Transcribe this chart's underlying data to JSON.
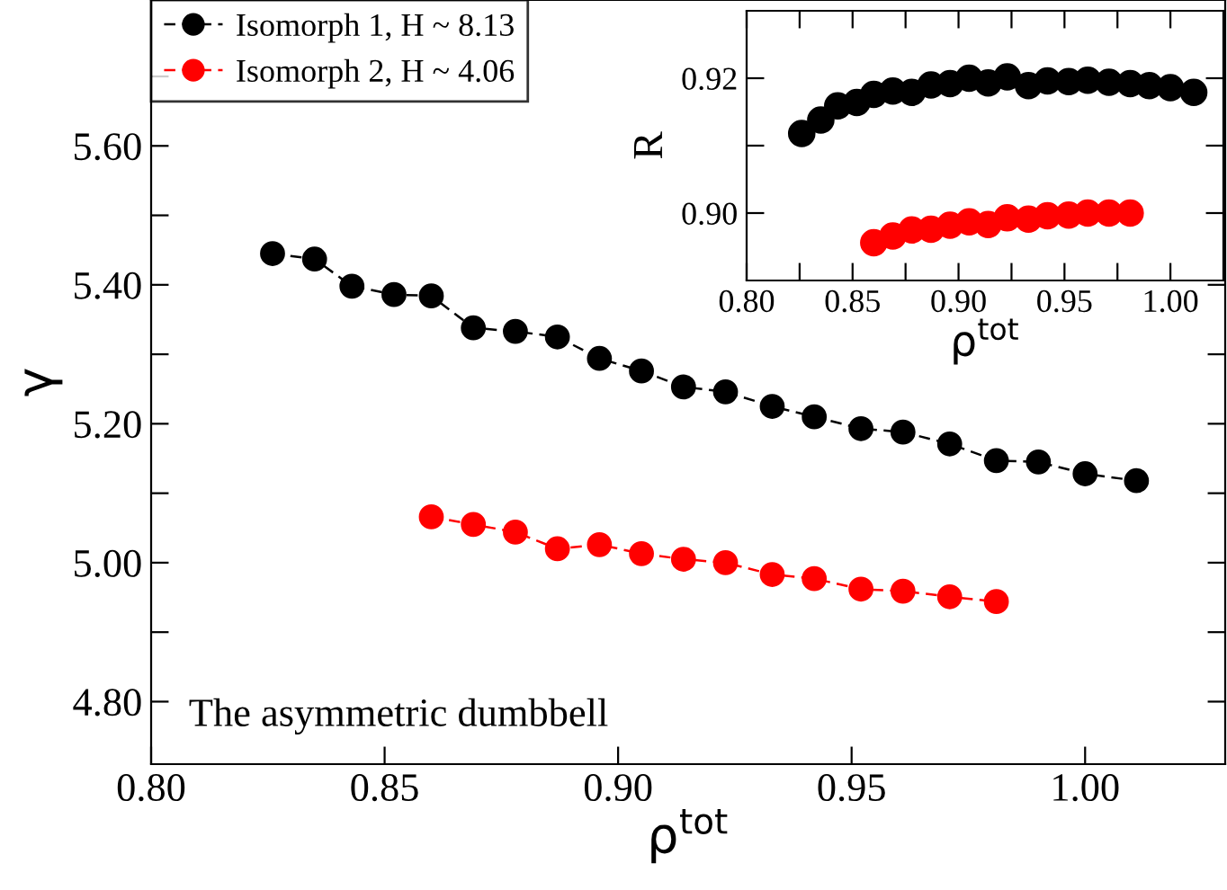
{
  "chart_data": [
    {
      "type": "line",
      "xlabel": "ρ$^{tot}$",
      "ylabel": "γ",
      "xlim": [
        0.8,
        1.03
      ],
      "ylim": [
        4.71,
        5.81
      ],
      "xticks": [
        {
          "value": 0.8,
          "label": "0.80"
        },
        {
          "value": 0.85,
          "label": "0.85"
        },
        {
          "value": 0.9,
          "label": "0.90"
        },
        {
          "value": 0.95,
          "label": "0.95"
        },
        {
          "value": 1.0,
          "label": "1.00"
        }
      ],
      "yticks": [
        {
          "value": 4.8,
          "label": "4.80"
        },
        {
          "value": 4.9,
          "label": null
        },
        {
          "value": 5.0,
          "label": "5.00"
        },
        {
          "value": 5.1,
          "label": null
        },
        {
          "value": 5.2,
          "label": "5.20"
        },
        {
          "value": 5.3,
          "label": null
        },
        {
          "value": 5.4,
          "label": "5.40"
        },
        {
          "value": 5.5,
          "label": null
        },
        {
          "value": 5.6,
          "label": "5.60"
        },
        {
          "value": 5.7,
          "label": null
        }
      ],
      "marker": "circle",
      "line_style": "dashed",
      "legend": "top left",
      "grid": false,
      "annotations": [
        "The asymmetric dumbbell"
      ],
      "series": [
        {
          "name": "Isomorph 1, H ~ 8.13",
          "color": "#000000",
          "x": [
            0.826,
            0.835,
            0.843,
            0.852,
            0.86,
            0.869,
            0.878,
            0.887,
            0.896,
            0.905,
            0.914,
            0.923,
            0.933,
            0.942,
            0.952,
            0.961,
            0.971,
            0.981,
            0.99,
            1.0,
            1.011
          ],
          "values": [
            5.445,
            5.437,
            5.398,
            5.386,
            5.384,
            5.338,
            5.333,
            5.325,
            5.294,
            5.276,
            5.253,
            5.246,
            5.225,
            5.21,
            5.193,
            5.188,
            5.171,
            5.147,
            5.145,
            5.128,
            5.118
          ]
        },
        {
          "name": "Isomorph 2, H ~ 4.06",
          "color": "#ff0000",
          "x": [
            0.86,
            0.869,
            0.878,
            0.887,
            0.896,
            0.905,
            0.914,
            0.923,
            0.933,
            0.942,
            0.952,
            0.961,
            0.971,
            0.981
          ],
          "values": [
            5.066,
            5.055,
            5.044,
            5.02,
            5.026,
            5.013,
            5.005,
            5.0,
            4.983,
            4.977,
            4.962,
            4.959,
            4.951,
            4.944
          ]
        }
      ]
    },
    {
      "type": "scatter",
      "xlabel": "ρ$^{tot}$",
      "ylabel": "R",
      "xlim": [
        0.8,
        1.025
      ],
      "ylim": [
        0.89,
        0.93
      ],
      "xticks": [
        {
          "value": 0.8,
          "label": "0.80"
        },
        {
          "value": 0.825,
          "label": null
        },
        {
          "value": 0.85,
          "label": "0.85"
        },
        {
          "value": 0.875,
          "label": null
        },
        {
          "value": 0.9,
          "label": "0.90"
        },
        {
          "value": 0.925,
          "label": null
        },
        {
          "value": 0.95,
          "label": "0.95"
        },
        {
          "value": 0.975,
          "label": null
        },
        {
          "value": 1.0,
          "label": "1.00"
        }
      ],
      "yticks": [
        {
          "value": 0.9,
          "label": "0.90"
        },
        {
          "value": 0.91,
          "label": null
        },
        {
          "value": 0.92,
          "label": "0.92"
        }
      ],
      "marker": "circle",
      "grid": false,
      "series": [
        {
          "color": "#000000",
          "x": [
            0.826,
            0.835,
            0.843,
            0.852,
            0.86,
            0.869,
            0.878,
            0.887,
            0.896,
            0.905,
            0.914,
            0.923,
            0.933,
            0.942,
            0.952,
            0.961,
            0.971,
            0.981,
            0.99,
            1.0,
            1.011
          ],
          "values": [
            0.9118,
            0.9138,
            0.9159,
            0.9164,
            0.9176,
            0.9181,
            0.9179,
            0.919,
            0.9192,
            0.92,
            0.9193,
            0.9202,
            0.9189,
            0.9196,
            0.9195,
            0.9197,
            0.9194,
            0.9192,
            0.9189,
            0.9186,
            0.9179
          ]
        },
        {
          "color": "#ff0000",
          "x": [
            0.86,
            0.869,
            0.878,
            0.887,
            0.896,
            0.905,
            0.914,
            0.923,
            0.933,
            0.942,
            0.952,
            0.961,
            0.971,
            0.981
          ],
          "values": [
            0.8956,
            0.8966,
            0.8975,
            0.8976,
            0.8982,
            0.8987,
            0.8983,
            0.8993,
            0.8991,
            0.8996,
            0.8997,
            0.9,
            0.9,
            0.9
          ]
        }
      ]
    }
  ]
}
